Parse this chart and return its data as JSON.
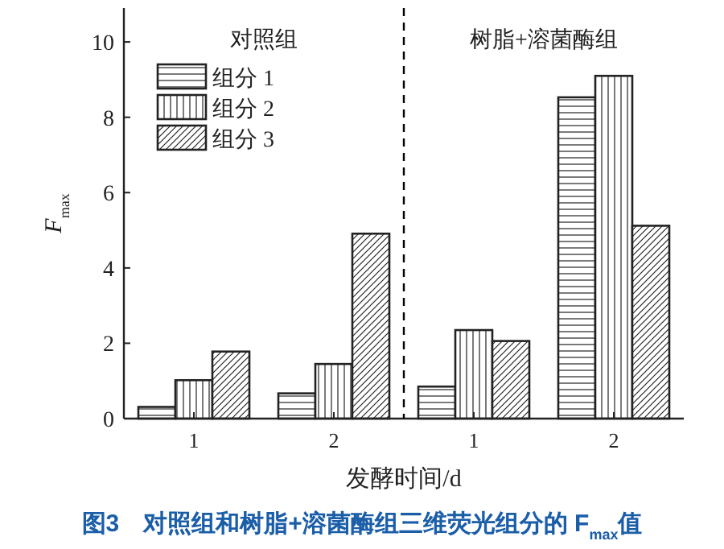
{
  "chart_data": {
    "type": "bar",
    "title": "图3　对照组和树脂+溶菌酶组三维荧光组分的 F$_{max}$值",
    "xlabel": "发酵时间/d",
    "ylabel": "F$_{max}$",
    "categories": [
      "1",
      "2",
      "1",
      "2"
    ],
    "series": [
      {
        "name": "组分 1",
        "color": "#222222",
        "values": [
          0.31,
          0.67,
          0.85,
          8.53
        ]
      },
      {
        "name": "组分 2",
        "color": "#222222",
        "values": [
          1.02,
          1.45,
          2.35,
          9.1
        ]
      },
      {
        "name": "组分 3",
        "color": "#222222",
        "values": [
          1.78,
          4.91,
          2.06,
          5.12
        ]
      }
    ],
    "ylim": [
      0,
      10.9
    ],
    "yticks": [
      0,
      2,
      4,
      6,
      8,
      10
    ],
    "annotations": [
      "对照组",
      "树脂+溶菌酶组"
    ],
    "legend": "top left",
    "grid": false
  }
}
